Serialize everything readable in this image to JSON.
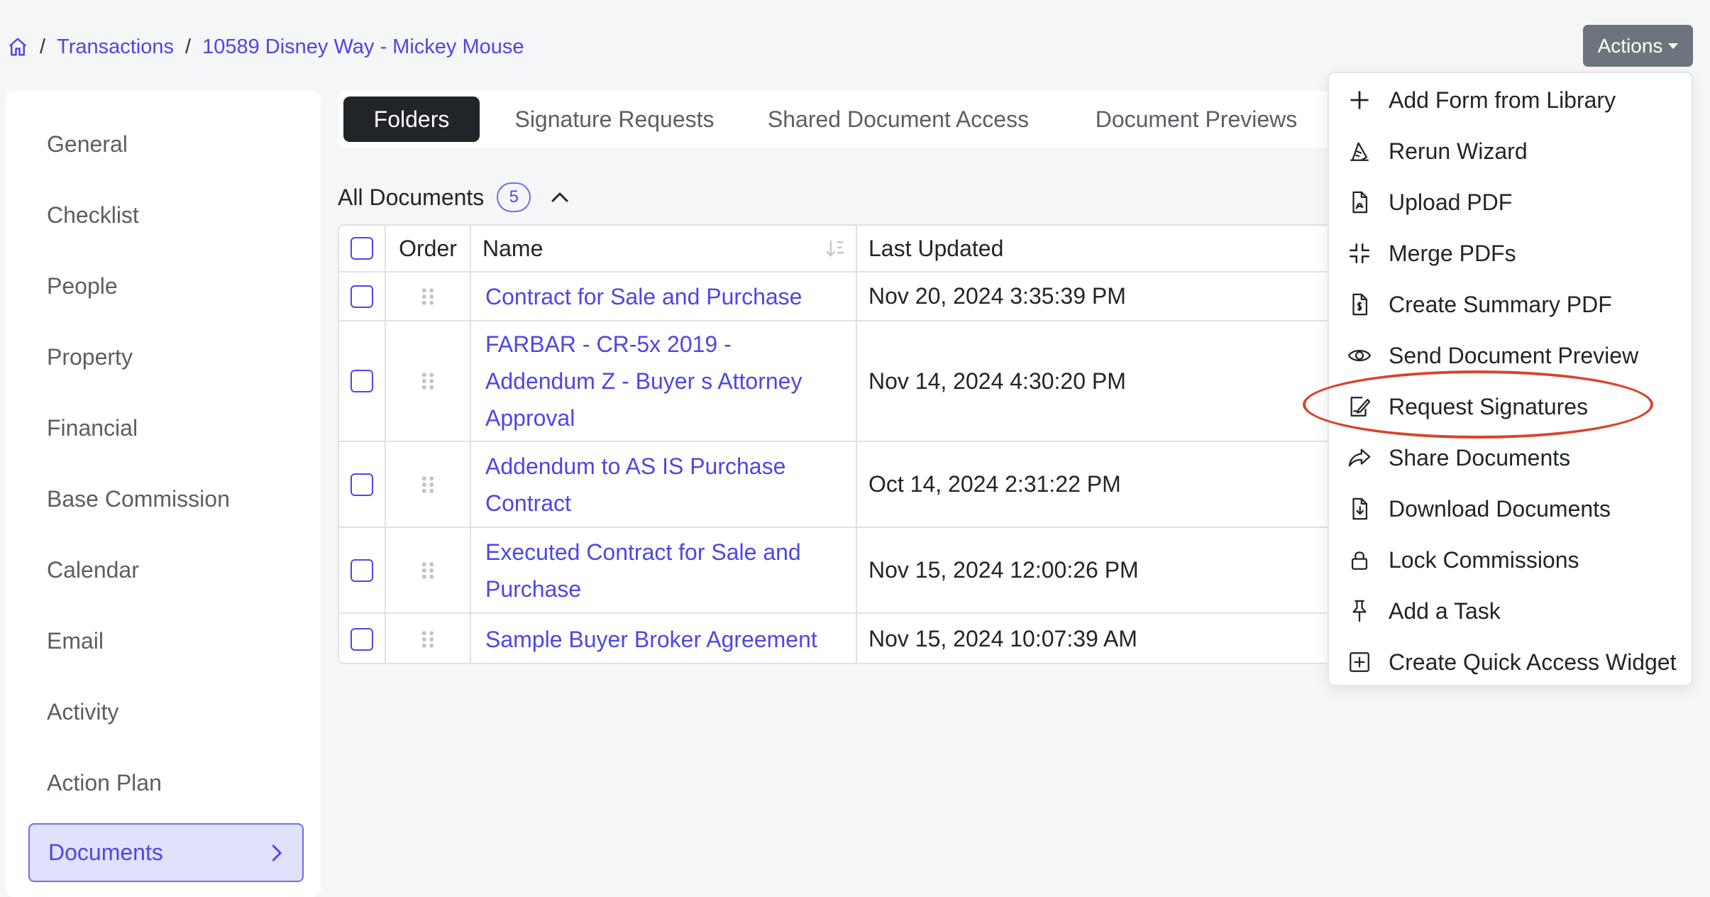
{
  "breadcrumb": {
    "home_icon": "home-icon",
    "separator": "/",
    "transactions": "Transactions",
    "current": "10589 Disney Way - Mickey Mouse"
  },
  "actions": {
    "label": "Actions"
  },
  "sidebar": {
    "items": [
      {
        "label": "General"
      },
      {
        "label": "Checklist"
      },
      {
        "label": "People"
      },
      {
        "label": "Property"
      },
      {
        "label": "Financial"
      },
      {
        "label": "Base Commission"
      },
      {
        "label": "Calendar"
      },
      {
        "label": "Email"
      },
      {
        "label": "Activity"
      },
      {
        "label": "Action Plan"
      },
      {
        "label": "Documents"
      }
    ]
  },
  "tabs": [
    {
      "label": "Folders"
    },
    {
      "label": "Signature Requests"
    },
    {
      "label": "Shared Document Access"
    },
    {
      "label": "Document Previews"
    }
  ],
  "documents": {
    "heading": "All Documents",
    "count": "5",
    "columns": {
      "order": "Order",
      "name": "Name",
      "last_updated": "Last Updated"
    },
    "rows": [
      {
        "name": "Contract for Sale and Purchase",
        "updated": "Nov 20, 2024 3:35:39 PM"
      },
      {
        "name": "FARBAR - CR-5x 2019 - Addendum Z - Buyer s Attorney Approval",
        "updated": "Nov 14, 2024 4:30:20 PM"
      },
      {
        "name": "Addendum to AS IS Purchase Contract",
        "updated": "Oct 14, 2024 2:31:22 PM"
      },
      {
        "name": "Executed Contract for Sale and Purchase",
        "updated": "Nov 15, 2024 12:00:26 PM"
      },
      {
        "name": "Sample Buyer Broker Agreement",
        "updated": "Nov 15, 2024 10:07:39 AM"
      }
    ]
  },
  "menu": {
    "items": [
      {
        "label": "Add Form from Library",
        "icon": "plus-icon"
      },
      {
        "label": "Rerun Wizard",
        "icon": "wizard-hat-icon"
      },
      {
        "label": "Upload PDF",
        "icon": "pdf-file-icon"
      },
      {
        "label": "Merge PDFs",
        "icon": "merge-icon"
      },
      {
        "label": "Create Summary PDF",
        "icon": "summary-file-icon"
      },
      {
        "label": "Send Document Preview",
        "icon": "eye-icon"
      },
      {
        "label": "Request Signatures",
        "icon": "signature-icon"
      },
      {
        "label": "Share Documents",
        "icon": "share-icon"
      },
      {
        "label": "Download Documents",
        "icon": "download-file-icon"
      },
      {
        "label": "Lock Commissions",
        "icon": "lock-icon"
      },
      {
        "label": "Add a Task",
        "icon": "pin-icon"
      },
      {
        "label": "Create Quick Access Widget",
        "icon": "plus-square-icon"
      }
    ]
  },
  "colors": {
    "accent": "#4f46e5",
    "highlight": "#d9442b",
    "button": "#6c757d"
  }
}
